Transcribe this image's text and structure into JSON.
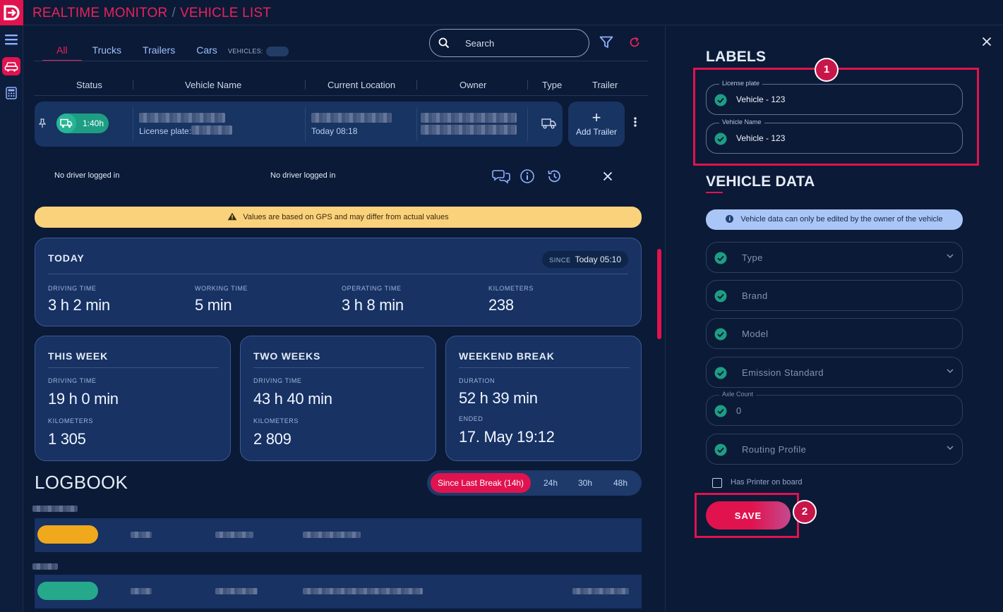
{
  "app": {
    "title_part1": "REALTIME MONITOR",
    "separator": "/",
    "title_part2": "VEHICLE LIST"
  },
  "tabs": [
    {
      "label": "All"
    },
    {
      "label": "Trucks"
    },
    {
      "label": "Trailers"
    },
    {
      "label": "Cars"
    }
  ],
  "vehicles_label": "VEHICLES:",
  "search": {
    "placeholder": "Search"
  },
  "columns": [
    "Status",
    "Vehicle Name",
    "Current Location",
    "Owner",
    "Type",
    "Trailer"
  ],
  "vehicle_row": {
    "status_time": "1:40h",
    "license_label": "License plate:",
    "location_time": "Today 08:18",
    "add_trailer": "Add Trailer"
  },
  "drivers": {
    "driver1": "No driver logged in",
    "driver2": "No driver logged in"
  },
  "warning": "Values are based on GPS and may differ from actual values",
  "today": {
    "title": "TODAY",
    "since_label": "SINCE",
    "since_value": "Today 05:10",
    "driving_label": "DRIVING TIME",
    "driving_value": "3 h 2 min",
    "working_label": "WORKING TIME",
    "working_value": "5 min",
    "operating_label": "OPERATING TIME",
    "operating_value": "3 h 8 min",
    "km_label": "KILOMETERS",
    "km_value": "238"
  },
  "this_week": {
    "title": "THIS WEEK",
    "driving_label": "DRIVING TIME",
    "driving_value": "19 h 0 min",
    "km_label": "KILOMETERS",
    "km_value": "1 305"
  },
  "two_weeks": {
    "title": "TWO WEEKS",
    "driving_label": "DRIVING TIME",
    "driving_value": "43 h 40 min",
    "km_label": "KILOMETERS",
    "km_value": "2 809"
  },
  "weekend_break": {
    "title": "WEEKEND BREAK",
    "duration_label": "DURATION",
    "duration_value": "52 h 39 min",
    "ended_label": "ENDED",
    "ended_value": "17. May 19:12"
  },
  "logbook": {
    "title": "LOGBOOK",
    "filters": [
      {
        "label": "Since Last Break (14h)"
      },
      {
        "label": "24h"
      },
      {
        "label": "30h"
      },
      {
        "label": "48h"
      }
    ]
  },
  "right_panel": {
    "labels_title": "LABELS",
    "license_plate": {
      "label": "License plate",
      "value": "Vehicle - 123"
    },
    "vehicle_name": {
      "label": "Vehicle Name",
      "value": "Vehicle - 123"
    },
    "vehicle_data_title": "VEHICLE DATA",
    "info": "Vehicle data can only be edited by the owner of the vehicle",
    "type": "Type",
    "brand": "Brand",
    "model": "Model",
    "emission": "Emission Standard",
    "axle_label": "Axle Count",
    "axle_value": "0",
    "routing": "Routing Profile",
    "printer": "Has Printer on board",
    "save": "SAVE",
    "annotation1": "1",
    "annotation2": "2"
  },
  "colors": {
    "accent": "#e0134f",
    "teal": "#1d9e83",
    "panel": "#173263",
    "bg": "#0b1a36"
  }
}
